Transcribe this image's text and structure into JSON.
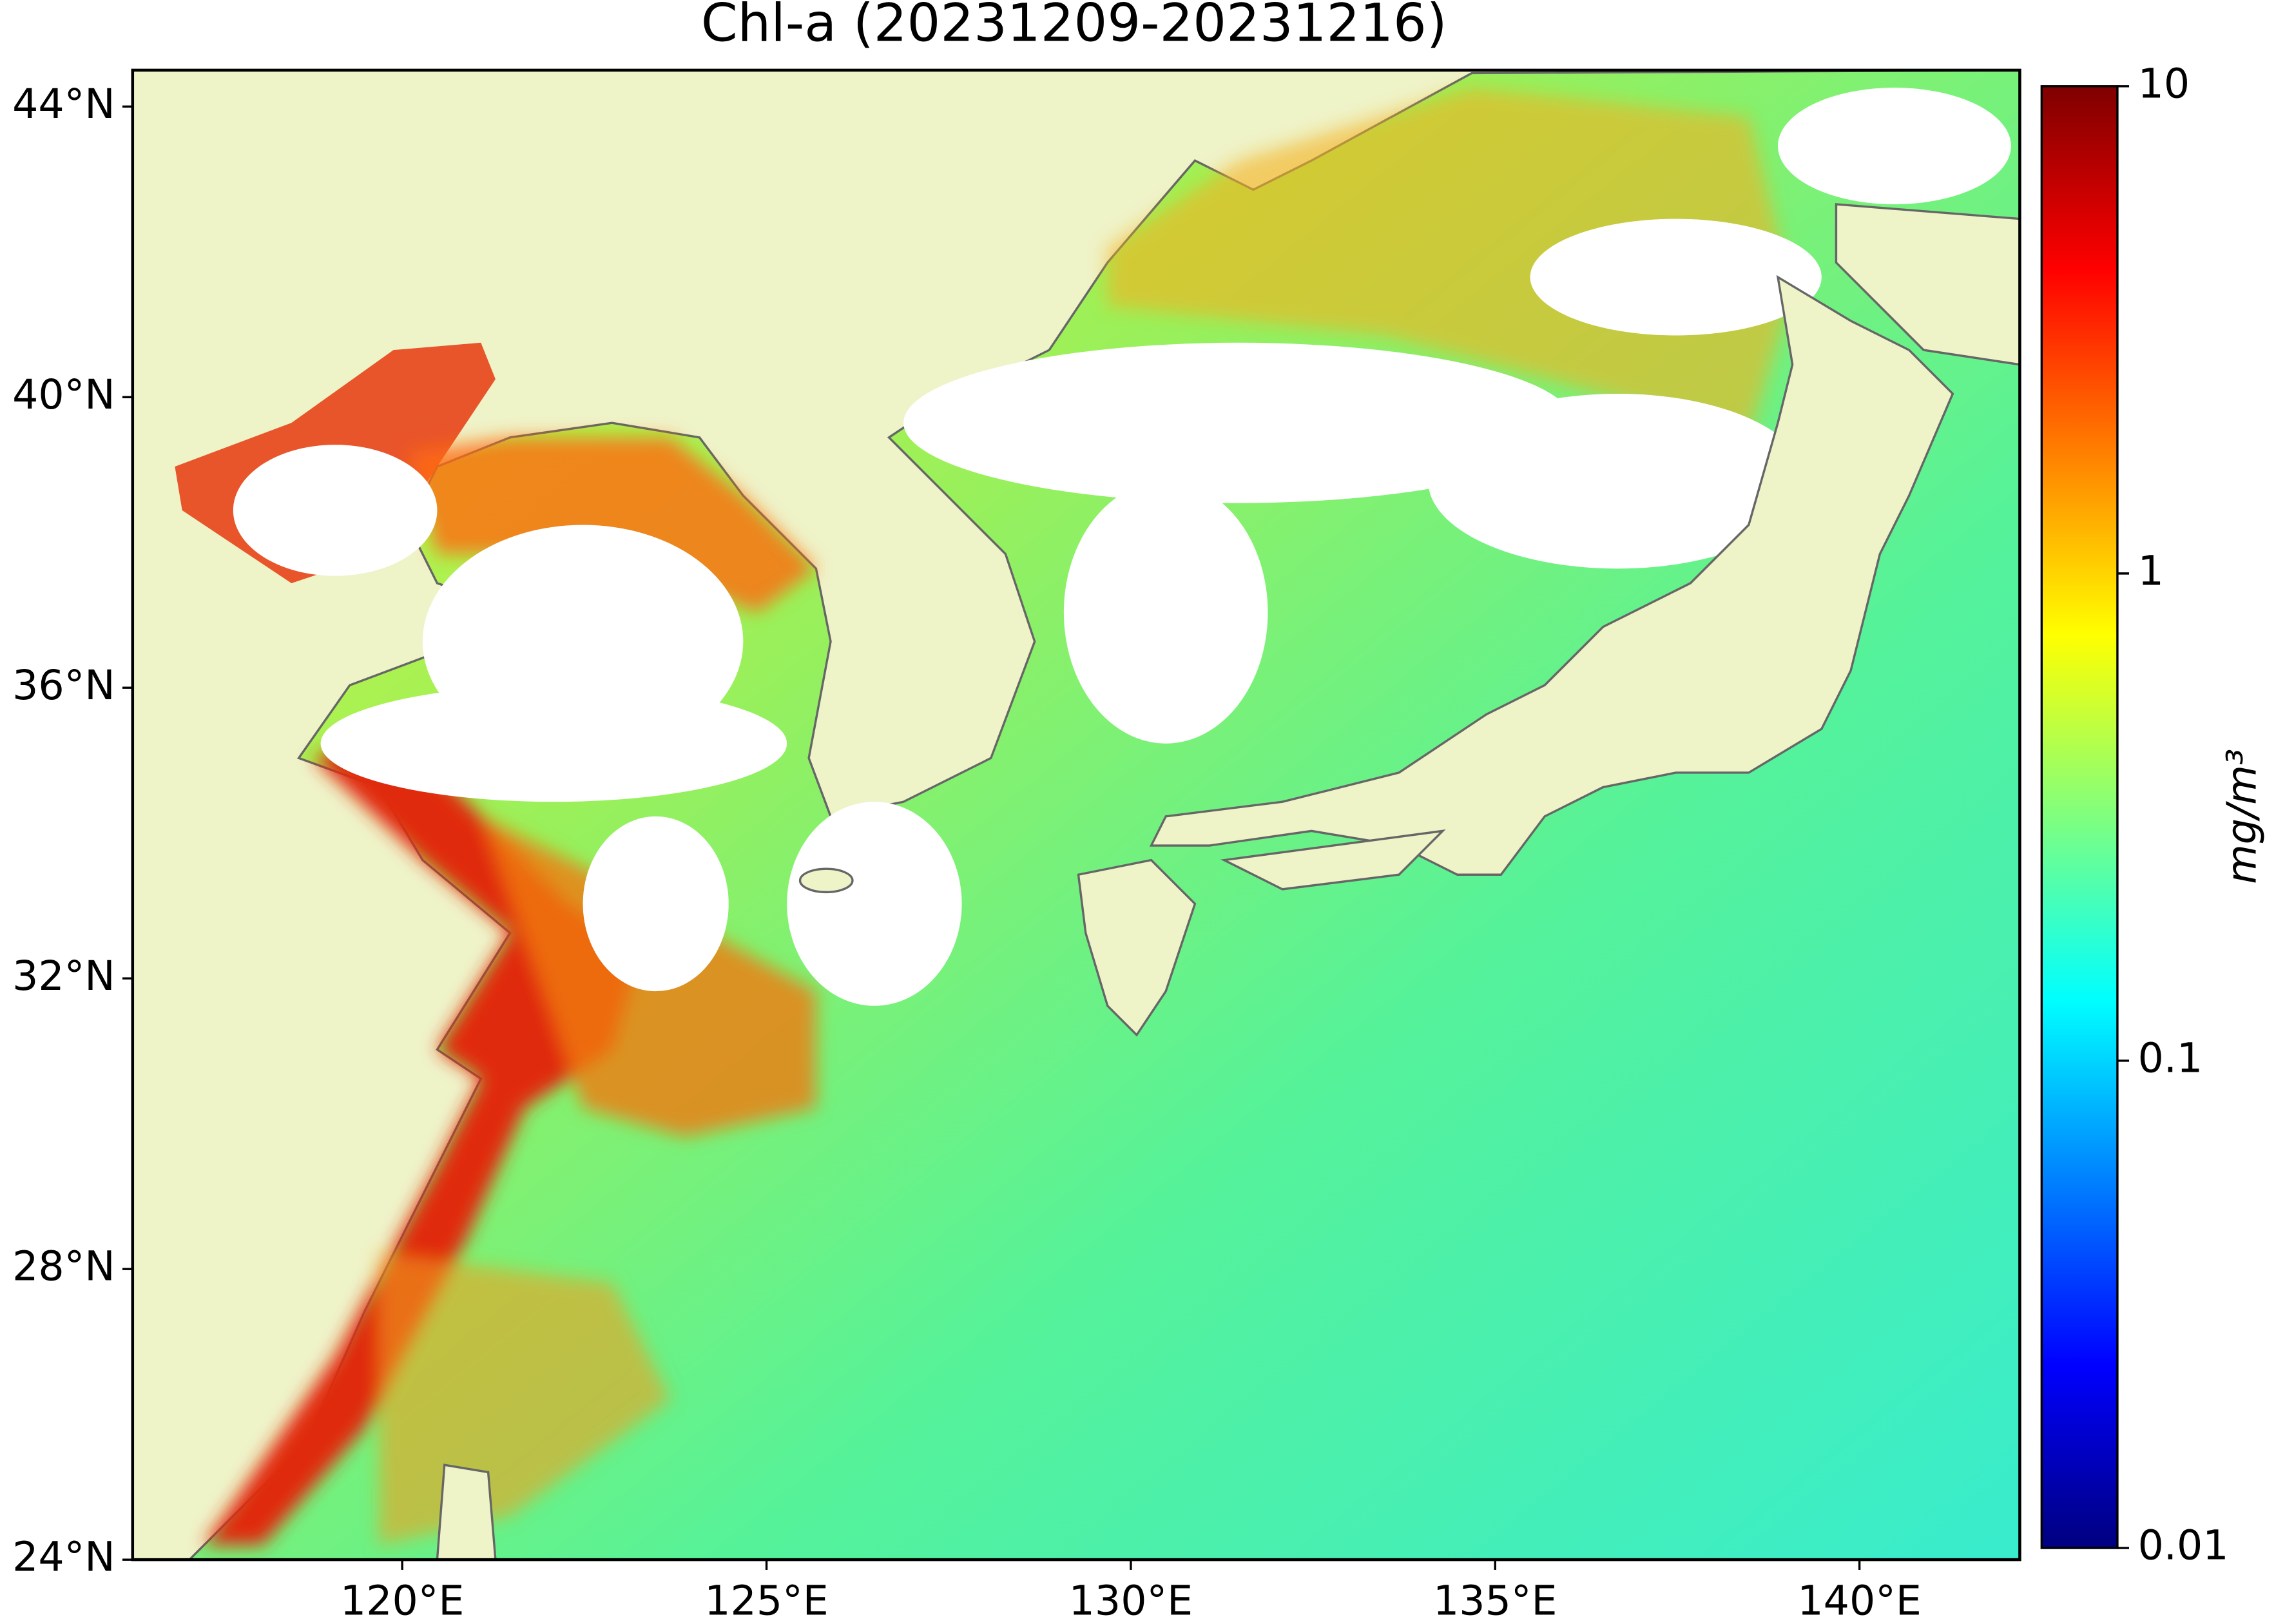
{
  "map": {
    "title": "Chl-a (20231209-20231216)",
    "xlim": [
      116.3,
      142.2
    ],
    "ylim": [
      24,
      44.5
    ],
    "xticks": [
      {
        "value": 120,
        "label": "120°E"
      },
      {
        "value": 125,
        "label": "125°E"
      },
      {
        "value": 130,
        "label": "130°E"
      },
      {
        "value": 135,
        "label": "135°E"
      },
      {
        "value": 140,
        "label": "140°E"
      }
    ],
    "yticks": [
      {
        "value": 24,
        "label": "24°N"
      },
      {
        "value": 28,
        "label": "28°N"
      },
      {
        "value": 32,
        "label": "32°N"
      },
      {
        "value": 36,
        "label": "36°N"
      },
      {
        "value": 40,
        "label": "40°N"
      },
      {
        "value": 44,
        "label": "44°N"
      }
    ],
    "land_color": "#eff3c8",
    "colorbar": {
      "label": "mg/m³",
      "scale": "log",
      "colormap": "jet",
      "lim": [
        0.01,
        10
      ],
      "ticks": [
        0.01,
        0.1,
        1,
        10
      ]
    }
  }
}
